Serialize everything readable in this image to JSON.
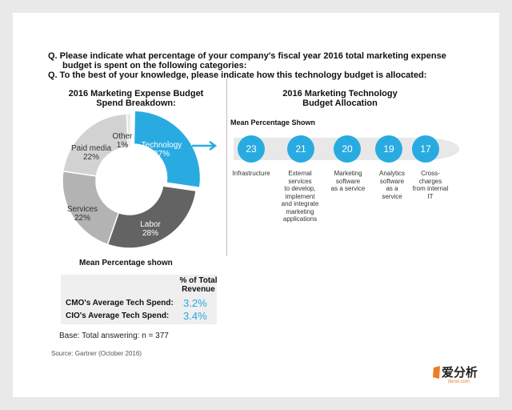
{
  "questions": [
    "Q. Please indicate what percentage of your company's fiscal year 2016 total marketing expense",
    "budget is spent on the following categories:",
    "Q. To the best of your knowledge, please indicate how this technology budget is allocated:"
  ],
  "left_title": [
    "2016 Marketing Expense Budget",
    "Spend Breakdown:"
  ],
  "right_title": [
    "2016 Marketing Technology",
    "Budget Allocation"
  ],
  "colors": {
    "accent": "#29abe2",
    "labor": "#636363",
    "services": "#b3b3b3",
    "paid_media": "#d2d2d2",
    "other": "#e6e6e6"
  },
  "chart_data": [
    {
      "type": "pie",
      "title": "2016 Marketing Expense Budget Spend Breakdown",
      "categories": [
        "Technology",
        "Labor",
        "Services",
        "Paid media",
        "Other"
      ],
      "values": [
        27,
        28,
        22,
        22,
        1
      ],
      "labels": [
        "Technology\n27%",
        "Labor\n28%",
        "Services\n22%",
        "Paid media\n22%",
        "Other\n1%"
      ]
    },
    {
      "type": "bar",
      "title": "2016 Marketing Technology Budget Allocation",
      "ylabel": "Mean Percentage Shown",
      "categories": [
        "Infrastructure",
        "External services to develop, implement and integrate marketing applications",
        "Marketing software as a service",
        "Analytics software as a service",
        "Cross-charges from internal IT"
      ],
      "values": [
        23,
        21,
        20,
        19,
        17
      ]
    }
  ],
  "pie_labels": [
    [
      "Technology",
      "27%"
    ],
    [
      "Labor",
      "28%"
    ],
    [
      "Services",
      "22%"
    ],
    [
      "Paid media",
      "22%"
    ],
    [
      "Other",
      "1%"
    ]
  ],
  "alloc_header": "Mean Percentage Shown",
  "alloc_values": [
    "23",
    "21",
    "20",
    "19",
    "17"
  ],
  "alloc_lines": [
    [
      "Infrastructure"
    ],
    [
      "External",
      "services",
      "to develop,",
      "implement",
      "and integrate",
      "marketing",
      "applications"
    ],
    [
      "Marketing",
      "software",
      "as a service"
    ],
    [
      "Analytics",
      "software",
      "as a",
      "service"
    ],
    [
      "Cross-",
      "charges",
      "from internal",
      "IT"
    ]
  ],
  "mean_shown": "Mean Percentage shown",
  "table": {
    "header": [
      "% of Total",
      "Revenue"
    ],
    "rows": [
      {
        "label": "CMO's Average Tech Spend:",
        "value": "3.2%"
      },
      {
        "label": "CIO's Average Tech Spend:",
        "value": "3.4%"
      }
    ]
  },
  "base": "Base: Total answering:  n = 377",
  "source": "Source: Gartner (October 2016)",
  "watermark": {
    "brand": "爱分析",
    "sub": "ifenxi.com"
  }
}
